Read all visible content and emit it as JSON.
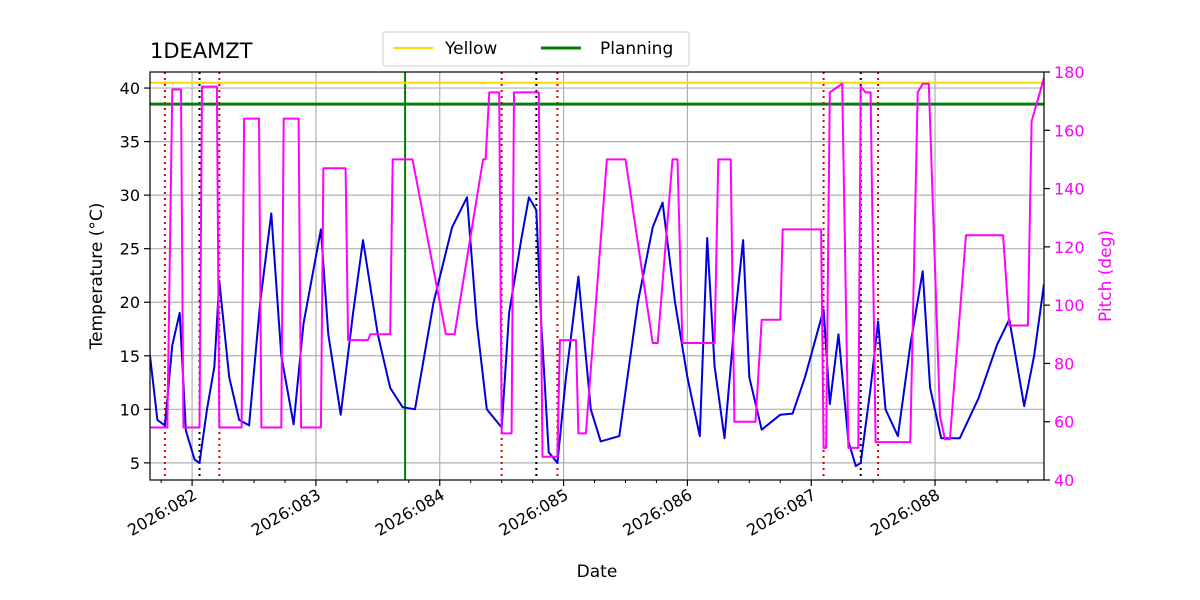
{
  "chart_data": {
    "type": "line",
    "title": "1DEAMZT",
    "xlabel": "Date",
    "ylabel": "Temperature ($^\\circ$C)",
    "ylabel_display": "Temperature (°C)",
    "y2label": "Pitch (deg)",
    "xlim": [
      81.66,
      88.88
    ],
    "ylim": [
      3.4,
      41.5
    ],
    "y2lim": [
      40,
      180
    ],
    "xticks": [
      {
        "value": 82,
        "label": "2026:082"
      },
      {
        "value": 83,
        "label": "2026:083"
      },
      {
        "value": 84,
        "label": "2026:084"
      },
      {
        "value": 85,
        "label": "2026:085"
      },
      {
        "value": 86,
        "label": "2026:086"
      },
      {
        "value": 87,
        "label": "2026:087"
      },
      {
        "value": 88,
        "label": "2026:088"
      }
    ],
    "yticks": [
      5,
      10,
      15,
      20,
      25,
      30,
      35,
      40
    ],
    "y2ticks": [
      40,
      60,
      80,
      100,
      120,
      140,
      160,
      180
    ],
    "grid": true,
    "legend": {
      "placement": "top-center",
      "entries": [
        {
          "name": "Yellow",
          "color": "#ffd700"
        },
        {
          "name": "Planning",
          "color": "#008000"
        }
      ]
    },
    "hlines": [
      {
        "name": "Yellow",
        "y": 40.5,
        "color": "#ffd700"
      },
      {
        "name": "Planning",
        "y": 38.5,
        "color": "#008000"
      }
    ],
    "vlines": [
      {
        "x": 81.78,
        "style": "red-dotted",
        "color": "#dd0000"
      },
      {
        "x": 82.06,
        "style": "black-dotted",
        "color": "#000000"
      },
      {
        "x": 82.22,
        "style": "red-dotted",
        "color": "#dd0000"
      },
      {
        "x": 83.72,
        "style": "green-solid",
        "color": "#008000"
      },
      {
        "x": 84.5,
        "style": "red-dotted",
        "color": "#dd0000"
      },
      {
        "x": 84.78,
        "style": "black-dotted",
        "color": "#000000"
      },
      {
        "x": 84.95,
        "style": "red-dotted",
        "color": "#dd0000"
      },
      {
        "x": 87.1,
        "style": "red-dotted",
        "color": "#dd0000"
      },
      {
        "x": 87.4,
        "style": "black-dotted",
        "color": "#000000"
      },
      {
        "x": 87.54,
        "style": "red-dotted",
        "color": "#dd0000"
      }
    ],
    "series": [
      {
        "name": "1DEAMZT temperature",
        "axis": "left",
        "color": "#0000dd",
        "x": [
          81.66,
          81.72,
          81.78,
          81.84,
          81.9,
          81.95,
          82.02,
          82.06,
          82.12,
          82.18,
          82.22,
          82.3,
          82.38,
          82.46,
          82.55,
          82.64,
          82.72,
          82.82,
          82.9,
          83.04,
          83.1,
          83.2,
          83.3,
          83.38,
          83.5,
          83.6,
          83.7,
          83.8,
          83.95,
          84.1,
          84.22,
          84.3,
          84.38,
          84.5,
          84.56,
          84.66,
          84.72,
          84.78,
          84.82,
          84.88,
          84.95,
          85.02,
          85.12,
          85.22,
          85.3,
          85.45,
          85.6,
          85.72,
          85.8,
          85.9,
          86.0,
          86.1,
          86.16,
          86.22,
          86.3,
          86.38,
          86.45,
          86.5,
          86.6,
          86.75,
          86.85,
          86.95,
          87.1,
          87.15,
          87.22,
          87.3,
          87.36,
          87.4,
          87.48,
          87.54,
          87.6,
          87.7,
          87.8,
          87.9,
          87.96,
          88.05,
          88.2,
          88.35,
          88.5,
          88.6,
          88.72,
          88.8,
          88.88
        ],
        "values": [
          15,
          9,
          8.5,
          16,
          19,
          8,
          5.3,
          5,
          10,
          14,
          22,
          13,
          9,
          8.5,
          20,
          28.3,
          15,
          8.6,
          18,
          26.8,
          17,
          9.5,
          19,
          25.8,
          17,
          12,
          10.2,
          10,
          20,
          27,
          29.8,
          18,
          10,
          8.3,
          19,
          26,
          29.8,
          28.6,
          18,
          6,
          5,
          13,
          22.4,
          10,
          7,
          7.5,
          20,
          27,
          29.3,
          20,
          13,
          7.5,
          26,
          14,
          7.3,
          18,
          25.8,
          13,
          8.1,
          9.5,
          9.6,
          13,
          19.3,
          10.5,
          17,
          7,
          4.7,
          5,
          12,
          18.2,
          10,
          7.5,
          16,
          22.9,
          12,
          7.3,
          7.3,
          11,
          16,
          18.4,
          10.3,
          15,
          21.7
        ]
      },
      {
        "name": "Pitch",
        "axis": "right",
        "color": "#ff00ff",
        "x": [
          81.66,
          81.78,
          81.8,
          81.84,
          81.87,
          81.91,
          81.93,
          81.95,
          82.06,
          82.08,
          82.2,
          82.22,
          82.4,
          82.42,
          82.54,
          82.56,
          82.6,
          82.72,
          82.74,
          82.86,
          82.88,
          82.92,
          83.04,
          83.06,
          83.24,
          83.26,
          83.28,
          83.42,
          83.44,
          83.6,
          83.62,
          83.76,
          83.78,
          84.05,
          84.12,
          84.35,
          84.37,
          84.4,
          84.48,
          84.5,
          84.52,
          84.58,
          84.6,
          84.8,
          84.83,
          84.88,
          84.95,
          84.97,
          85.1,
          85.12,
          85.18,
          85.35,
          85.38,
          85.5,
          85.72,
          85.76,
          85.88,
          85.92,
          85.96,
          86.22,
          86.25,
          86.35,
          86.38,
          86.55,
          86.6,
          86.75,
          86.77,
          87.08,
          87.1,
          87.12,
          87.15,
          87.25,
          87.3,
          87.32,
          87.38,
          87.4,
          87.44,
          87.48,
          87.52,
          87.54,
          87.58,
          87.8,
          87.86,
          87.9,
          87.95,
          88.04,
          88.08,
          88.12,
          88.25,
          88.4,
          88.55,
          88.6,
          88.72,
          88.75,
          88.78,
          88.88
        ],
        "values": [
          58,
          58,
          58,
          174,
          174,
          174,
          58,
          58,
          58,
          175,
          175,
          58,
          58,
          164,
          164,
          58,
          58,
          58,
          164,
          164,
          58,
          58,
          58,
          147,
          147,
          88,
          88,
          88,
          90,
          90,
          150,
          150,
          150,
          90,
          90,
          150,
          150,
          173,
          173,
          56,
          56,
          56,
          173,
          173,
          48,
          48,
          48,
          88,
          88,
          56,
          56,
          150,
          150,
          150,
          87,
          87,
          150,
          150,
          87,
          87,
          150,
          150,
          60,
          60,
          95,
          95,
          126,
          126,
          51,
          51,
          173,
          176,
          51,
          51,
          51,
          175,
          173,
          173,
          53,
          53,
          53,
          53,
          173,
          176,
          176,
          62,
          54,
          54,
          124,
          124,
          124,
          93,
          93,
          93,
          163,
          178
        ]
      }
    ]
  }
}
